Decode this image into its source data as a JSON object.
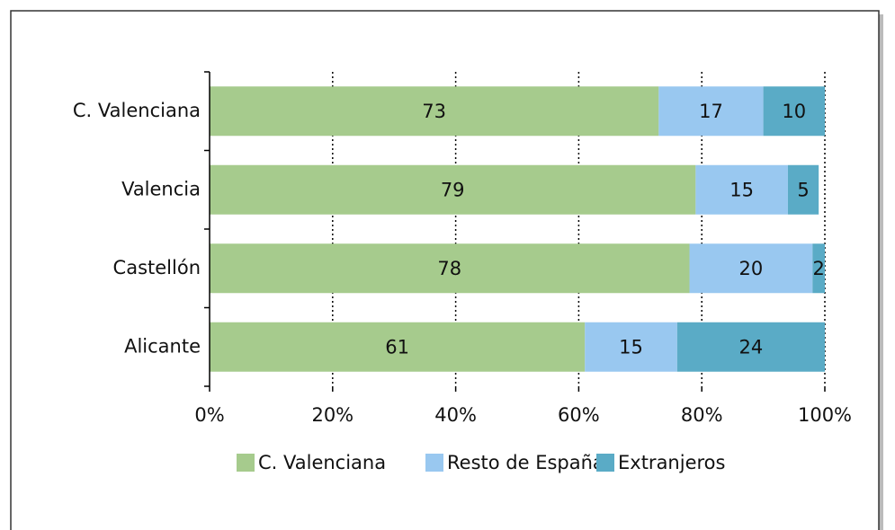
{
  "chart_data": {
    "type": "stacked-bar-horizontal",
    "categories": [
      "C. Valenciana",
      "Valencia",
      "Castellón",
      "Alicante"
    ],
    "series": [
      {
        "name": "C. Valenciana",
        "color": "#a6cb8d",
        "values": [
          73,
          79,
          78,
          61
        ]
      },
      {
        "name": "Resto de España",
        "color": "#99c8f0",
        "values": [
          17,
          15,
          20,
          15
        ]
      },
      {
        "name": "Extranjeros",
        "color": "#5aabc6",
        "values": [
          10,
          5,
          2,
          24
        ]
      }
    ],
    "xlim": [
      0,
      100
    ],
    "xticks": [
      {
        "value": 0,
        "label": "0%"
      },
      {
        "value": 20,
        "label": "20%"
      },
      {
        "value": 40,
        "label": "40%"
      },
      {
        "value": 60,
        "label": "60%"
      },
      {
        "value": 80,
        "label": "80%"
      },
      {
        "value": 100,
        "label": "100%"
      }
    ],
    "grid": true,
    "legend": "bottom"
  }
}
